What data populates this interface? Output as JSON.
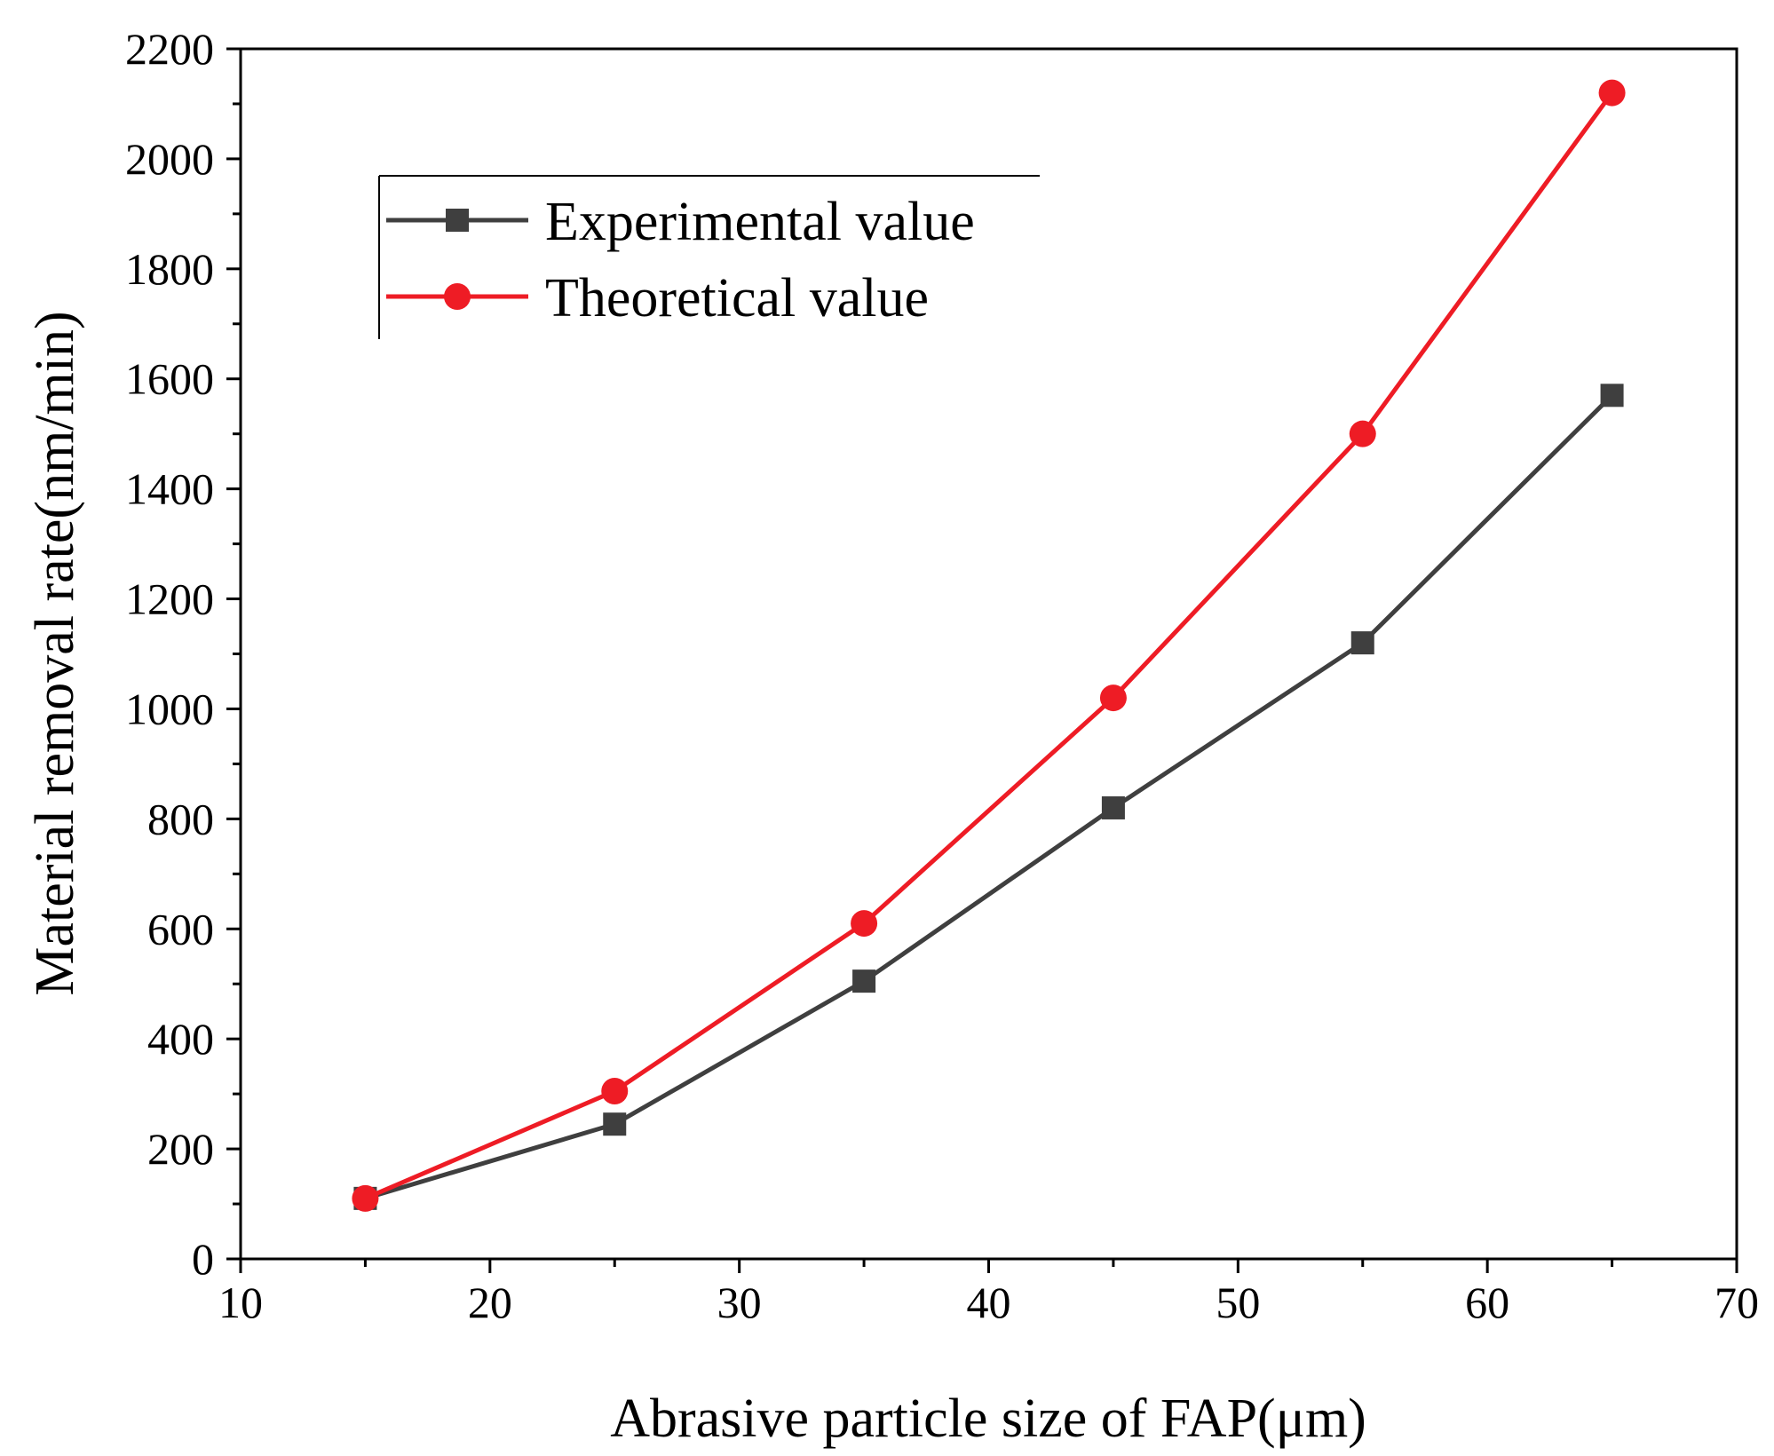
{
  "chart_data": {
    "type": "line",
    "title": "",
    "xlabel": "Abrasive particle size of FAP(μm)",
    "ylabel": "Material removal rate(nm/min)",
    "xlim": [
      10,
      70
    ],
    "ylim": [
      0,
      2200
    ],
    "x_ticks": [
      10,
      20,
      30,
      40,
      50,
      60,
      70
    ],
    "y_ticks": [
      0,
      200,
      400,
      600,
      800,
      1000,
      1200,
      1400,
      1600,
      1800,
      2000,
      2200
    ],
    "x_tick_labels": [
      "10",
      "20",
      "30",
      "40",
      "50",
      "60",
      "70"
    ],
    "y_tick_labels": [
      "0",
      "200",
      "400",
      "600",
      "800",
      "1000",
      "1200",
      "1400",
      "1600",
      "1800",
      "2000",
      "2200"
    ],
    "x": [
      15,
      25,
      35,
      45,
      55,
      65
    ],
    "series": [
      {
        "name": "Experimental value",
        "marker": "square",
        "color": "#3f3f3f",
        "values": [
          110,
          245,
          505,
          820,
          1120,
          1570
        ]
      },
      {
        "name": "Theoretical value",
        "marker": "circle",
        "color": "#ee1c25",
        "values": [
          110,
          305,
          610,
          1020,
          1500,
          2120
        ]
      }
    ],
    "legend_position": "top-left",
    "grid": false
  }
}
